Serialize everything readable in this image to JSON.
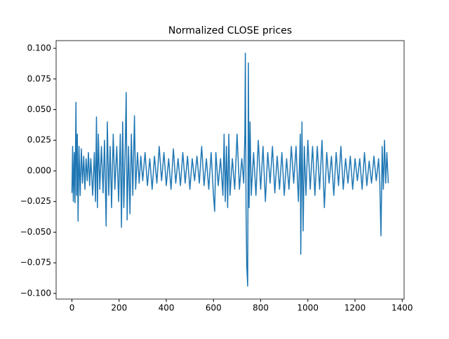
{
  "chart_data": {
    "type": "line",
    "title": "Normalized CLOSE prices",
    "x": [
      0,
      3,
      6,
      10,
      13,
      17,
      20,
      23,
      26,
      30,
      35,
      40,
      45,
      50,
      55,
      60,
      65,
      70,
      75,
      80,
      88,
      95,
      100,
      104,
      108,
      112,
      118,
      125,
      132,
      138,
      145,
      150,
      156,
      162,
      168,
      175,
      182,
      190,
      198,
      205,
      210,
      215,
      220,
      226,
      230,
      234,
      240,
      246,
      252,
      258,
      265,
      270,
      278,
      285,
      292,
      300,
      310,
      320,
      330,
      340,
      350,
      360,
      370,
      380,
      390,
      400,
      410,
      420,
      430,
      440,
      450,
      460,
      470,
      480,
      490,
      500,
      510,
      520,
      530,
      540,
      550,
      560,
      570,
      580,
      590,
      600,
      605,
      610,
      620,
      630,
      640,
      645,
      650,
      655,
      660,
      665,
      670,
      680,
      690,
      700,
      710,
      720,
      728,
      733,
      735,
      738,
      741,
      745,
      748,
      751,
      755,
      760,
      770,
      780,
      790,
      800,
      810,
      820,
      830,
      840,
      850,
      860,
      870,
      880,
      890,
      900,
      910,
      920,
      930,
      940,
      950,
      960,
      968,
      970,
      975,
      980,
      985,
      992,
      1000,
      1010,
      1020,
      1030,
      1040,
      1050,
      1060,
      1070,
      1080,
      1090,
      1100,
      1110,
      1120,
      1130,
      1140,
      1150,
      1160,
      1170,
      1180,
      1190,
      1200,
      1210,
      1220,
      1230,
      1240,
      1250,
      1260,
      1270,
      1280,
      1290,
      1300,
      1305,
      1310,
      1315,
      1320,
      1325,
      1330,
      1335,
      1341
    ],
    "series": [
      {
        "color": "#1f77b4",
        "values": [
          -0.018,
          0.02,
          -0.025,
          0.015,
          -0.026,
          0.056,
          -0.02,
          0.03,
          -0.041,
          0.02,
          -0.02,
          0.018,
          -0.01,
          0.012,
          -0.015,
          0.01,
          -0.008,
          0.015,
          -0.012,
          0.01,
          -0.02,
          0.015,
          -0.025,
          0.044,
          -0.03,
          0.03,
          -0.015,
          0.02,
          -0.018,
          0.025,
          -0.045,
          0.04,
          -0.02,
          0.02,
          -0.03,
          0.03,
          -0.015,
          0.02,
          -0.025,
          0.03,
          -0.046,
          0.04,
          -0.03,
          0.02,
          0.064,
          -0.04,
          0.02,
          -0.035,
          0.03,
          -0.02,
          0.045,
          -0.015,
          0.015,
          -0.01,
          0.012,
          -0.008,
          0.015,
          -0.012,
          0.01,
          -0.015,
          0.012,
          -0.01,
          0.02,
          -0.008,
          0.015,
          -0.012,
          0.01,
          -0.015,
          0.018,
          -0.01,
          0.01,
          -0.012,
          0.015,
          -0.01,
          0.012,
          -0.015,
          0.01,
          -0.008,
          0.012,
          -0.01,
          0.02,
          -0.012,
          0.01,
          -0.015,
          0.015,
          -0.02,
          -0.033,
          0.015,
          -0.012,
          0.01,
          -0.02,
          0.03,
          -0.025,
          0.02,
          -0.03,
          0.03,
          -0.02,
          0.01,
          -0.015,
          0.03,
          -0.015,
          0.01,
          -0.01,
          0.03,
          0.096,
          -0.03,
          -0.078,
          -0.094,
          0.088,
          -0.03,
          0.04,
          -0.02,
          0.015,
          -0.02,
          0.025,
          -0.015,
          0.02,
          -0.025,
          0.015,
          -0.01,
          0.02,
          -0.018,
          0.012,
          -0.015,
          0.015,
          -0.02,
          0.01,
          -0.015,
          0.02,
          -0.01,
          0.02,
          -0.025,
          0.03,
          -0.068,
          0.04,
          -0.049,
          0.02,
          -0.02,
          0.025,
          -0.015,
          0.02,
          -0.02,
          0.02,
          -0.015,
          0.025,
          -0.03,
          0.015,
          -0.01,
          0.012,
          -0.02,
          0.015,
          -0.012,
          0.02,
          -0.015,
          0.01,
          -0.01,
          0.012,
          -0.015,
          0.01,
          -0.008,
          0.01,
          -0.015,
          0.015,
          -0.012,
          0.008,
          -0.01,
          0.012,
          -0.008,
          0.01,
          -0.01,
          -0.053,
          0.02,
          -0.015,
          0.025,
          -0.01,
          0.015,
          -0.01
        ]
      }
    ],
    "xlim": [
      -67,
      1408
    ],
    "ylim": [
      -0.1046,
      0.1063
    ],
    "xticks": [
      0,
      200,
      400,
      600,
      800,
      1000,
      1200,
      1400
    ],
    "yticks": [
      {
        "value": -0.1,
        "label": "−0.100"
      },
      {
        "value": -0.075,
        "label": "−0.075"
      },
      {
        "value": -0.05,
        "label": "−0.050"
      },
      {
        "value": -0.025,
        "label": "−0.025"
      },
      {
        "value": 0,
        "label": "0.000"
      },
      {
        "value": 0.025,
        "label": "0.025"
      },
      {
        "value": 0.05,
        "label": "0.050"
      },
      {
        "value": 0.075,
        "label": "0.075"
      },
      {
        "value": 0.1,
        "label": "0.100"
      }
    ]
  }
}
